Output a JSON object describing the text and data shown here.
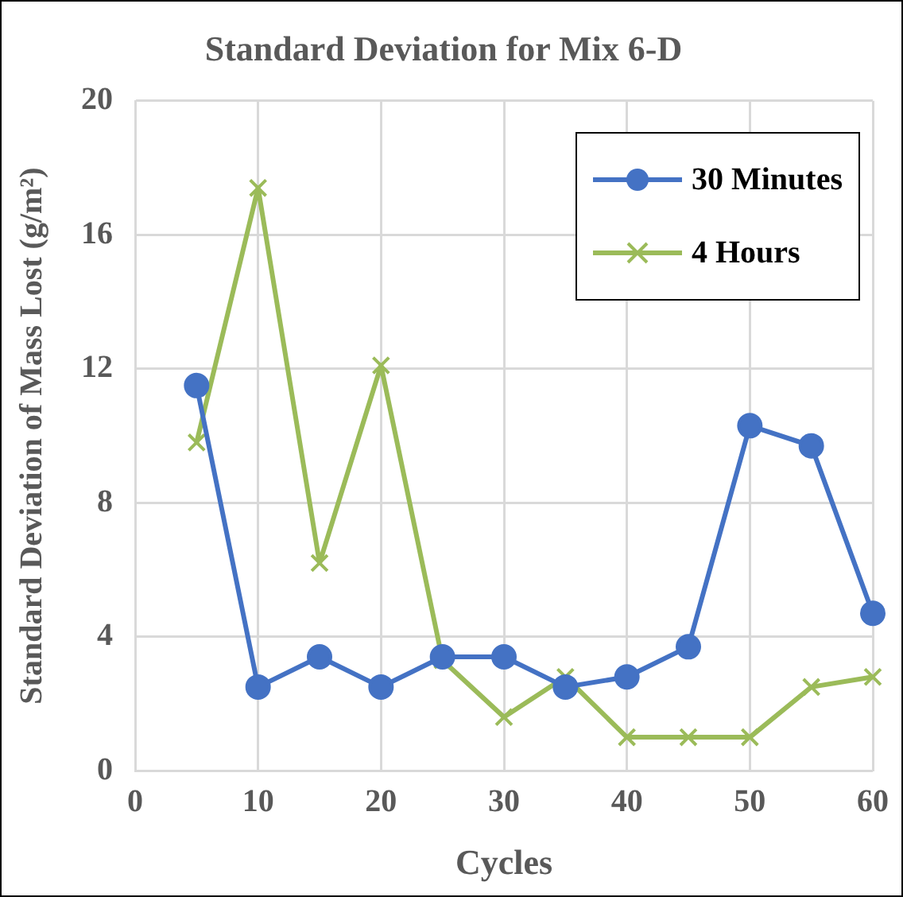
{
  "chart_data": {
    "type": "line",
    "title": "Standard Deviation for Mix 6-D",
    "xlabel": "Cycles",
    "ylabel": "Standard Deviation of Mass Lost (g/m²)",
    "x": [
      5,
      10,
      15,
      20,
      25,
      30,
      35,
      40,
      45,
      50,
      55,
      60
    ],
    "series": [
      {
        "name": "30 Minutes",
        "color": "#4472c4",
        "marker": "circle",
        "values": [
          11.5,
          2.5,
          3.4,
          2.5,
          3.4,
          3.4,
          2.5,
          2.8,
          3.7,
          10.3,
          9.7,
          4.7
        ]
      },
      {
        "name": "4 Hours",
        "color": "#9bbb59",
        "marker": "cross",
        "values": [
          9.8,
          17.4,
          6.2,
          12.1,
          3.3,
          1.6,
          2.8,
          1.0,
          1.0,
          1.0,
          2.5,
          2.8
        ]
      }
    ],
    "xlim": [
      0,
      60
    ],
    "xticks": [
      0,
      10,
      20,
      30,
      40,
      50,
      60
    ],
    "ylim": [
      0,
      20
    ],
    "yticks": [
      0,
      4,
      8,
      12,
      16,
      20
    ],
    "grid": true,
    "legend": "top right",
    "line_style": "solid"
  }
}
